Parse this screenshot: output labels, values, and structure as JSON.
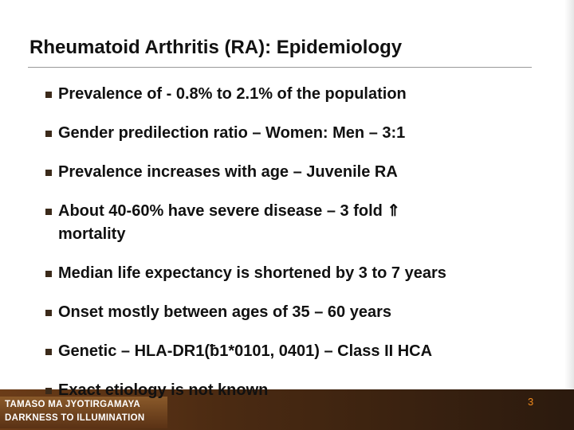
{
  "title": "Rheumatoid Arthritis (RA): Epidemiology",
  "bullets": [
    "Prevalence of -  0.8% to 2.1% of the population",
    "Gender predilection ratio –  Women: Men – 3:1",
    "Prevalence increases with age – Juvenile RA",
    "About 40-60% have severe disease – 3 fold ⇑ mortality",
    "Median life expectancy is shortened by 3 to 7 years",
    "Onset mostly between ages of 35 – 60 years",
    "Genetic – HLA-DR1(ƀ1*0101, 0401) – Class II HCA",
    "Exact etiology is not known"
  ],
  "footer": {
    "line1": "TAMASO MA JYOTIRGAMAYA",
    "line2": "DARKNESS TO ILLUMINATION"
  },
  "page_number": "3"
}
